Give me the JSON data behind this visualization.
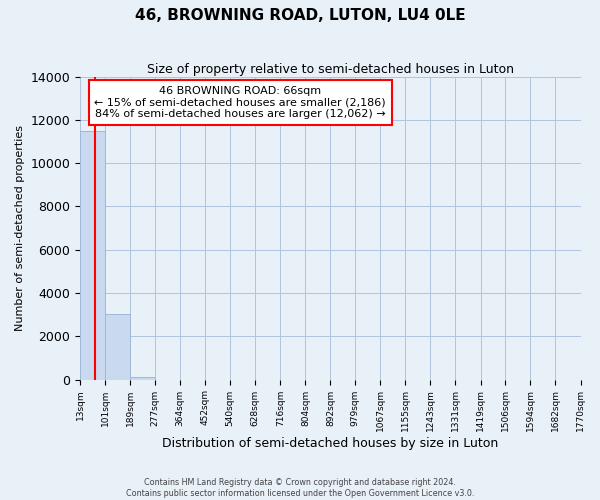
{
  "title": "46, BROWNING ROAD, LUTON, LU4 0LE",
  "subtitle": "Size of property relative to semi-detached houses in Luton",
  "xlabel": "Distribution of semi-detached houses by size in Luton",
  "ylabel": "Number of semi-detached properties",
  "bar_edges": [
    13,
    101,
    189,
    277,
    364,
    452,
    540,
    628,
    716,
    804,
    892,
    979,
    1067,
    1155,
    1243,
    1331,
    1419,
    1506,
    1594,
    1682,
    1770
  ],
  "bar_heights": [
    11480,
    3030,
    120,
    0,
    0,
    0,
    0,
    0,
    0,
    0,
    0,
    0,
    0,
    0,
    0,
    0,
    0,
    0,
    0,
    0
  ],
  "bar_color": "#c9d9f0",
  "bar_edge_color": "#a0b8d8",
  "property_line_x": 66,
  "property_line_color": "red",
  "ylim": [
    0,
    14000
  ],
  "yticks": [
    0,
    2000,
    4000,
    6000,
    8000,
    10000,
    12000,
    14000
  ],
  "annotation_title": "46 BROWNING ROAD: 66sqm",
  "annotation_line1": "← 15% of semi-detached houses are smaller (2,186)",
  "annotation_line2": "84% of semi-detached houses are larger (12,062) →",
  "annotation_box_color": "#ffffff",
  "annotation_box_edge_color": "red",
  "grid_color": "#b0c4de",
  "background_color": "#e8f0f8",
  "footer_line1": "Contains HM Land Registry data © Crown copyright and database right 2024.",
  "footer_line2": "Contains public sector information licensed under the Open Government Licence v3.0.",
  "tick_labels": [
    "13sqm",
    "101sqm",
    "189sqm",
    "277sqm",
    "364sqm",
    "452sqm",
    "540sqm",
    "628sqm",
    "716sqm",
    "804sqm",
    "892sqm",
    "979sqm",
    "1067sqm",
    "1155sqm",
    "1243sqm",
    "1331sqm",
    "1419sqm",
    "1506sqm",
    "1594sqm",
    "1682sqm",
    "1770sqm"
  ]
}
